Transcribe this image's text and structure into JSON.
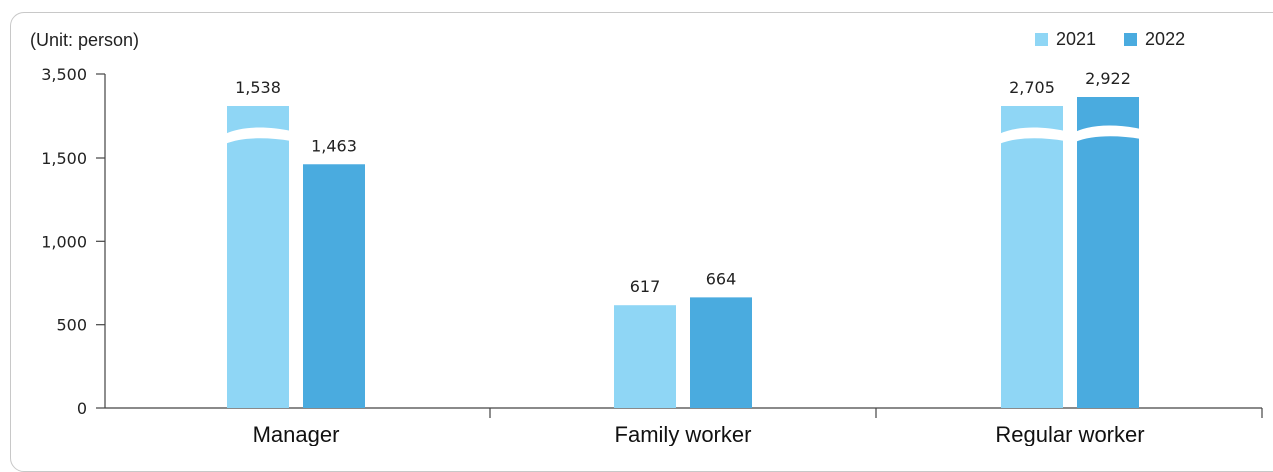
{
  "chart_data": {
    "type": "bar",
    "unit_label": "(Unit: person)",
    "categories": [
      "Manager",
      "Family worker",
      "Regular worker"
    ],
    "series": [
      {
        "name": "2021",
        "color": "#8fd6f5",
        "values": [
          1538,
          617,
          2705
        ],
        "labels": [
          "1,538",
          "617",
          "2,705"
        ]
      },
      {
        "name": "2022",
        "color": "#4aabdf",
        "values": [
          1463,
          664,
          2922
        ],
        "labels": [
          "1,463",
          "664",
          "2,922"
        ]
      }
    ],
    "yticks": [
      "0",
      "500",
      "1,000",
      "1,500",
      "3,500"
    ],
    "ylim": [
      0,
      3500
    ],
    "axis_break": true,
    "grid": false,
    "legend_position": "top-right"
  }
}
